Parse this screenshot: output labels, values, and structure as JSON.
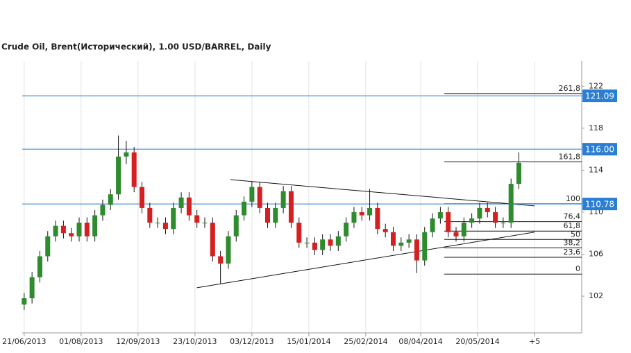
{
  "chart_data": {
    "type": "candlestick",
    "title": "Crude Oil, Brent(Исторический), 1.00 USD/BARREL, Daily",
    "x": [
      0,
      4,
      8,
      12,
      16,
      20,
      24,
      28,
      32,
      36,
      40,
      44,
      48,
      52,
      56,
      60,
      64,
      68,
      72,
      76,
      80,
      84,
      88,
      92,
      96,
      100,
      104,
      108,
      112,
      116,
      120,
      124,
      128,
      132,
      136,
      140,
      144,
      148,
      152,
      156,
      160,
      164,
      168,
      172,
      176,
      180,
      184,
      188,
      192,
      196,
      200,
      204,
      208,
      212,
      216,
      220,
      224,
      228,
      232,
      236,
      240,
      244,
      248,
      252
    ],
    "open": [
      101.2,
      101.8,
      103.8,
      105.8,
      107.7,
      108.7,
      108.0,
      107.7,
      109.0,
      107.7,
      109.7,
      110.7,
      111.7,
      115.3,
      115.7,
      112.4,
      110.4,
      109.0,
      109.0,
      108.4,
      110.4,
      111.4,
      109.7,
      109.0,
      109.0,
      105.8,
      105.1,
      107.7,
      109.7,
      111.0,
      112.4,
      110.4,
      109.0,
      110.4,
      112.0,
      109.0,
      107.1,
      107.1,
      106.4,
      107.4,
      106.8,
      107.7,
      109.0,
      110.0,
      109.7,
      110.4,
      108.4,
      108.1,
      106.8,
      107.1,
      107.4,
      105.4,
      108.1,
      109.4,
      110.0,
      108.1,
      107.7,
      109.0,
      109.4,
      110.4,
      110.0,
      109.0,
      109.0,
      112.7
    ],
    "high": [
      102.3,
      104.3,
      106.3,
      108.2,
      109.2,
      109.2,
      108.5,
      109.5,
      109.5,
      110.2,
      111.2,
      112.2,
      117.3,
      116.8,
      116.2,
      112.9,
      110.9,
      109.5,
      109.5,
      110.9,
      111.9,
      111.9,
      110.2,
      109.5,
      109.5,
      106.3,
      108.2,
      110.2,
      111.5,
      112.9,
      112.9,
      110.9,
      110.9,
      112.5,
      112.5,
      109.5,
      107.6,
      107.6,
      107.9,
      107.9,
      108.2,
      109.5,
      110.5,
      110.5,
      112.2,
      110.9,
      108.9,
      108.6,
      107.6,
      107.9,
      107.9,
      108.6,
      109.9,
      110.5,
      110.5,
      108.6,
      109.5,
      109.9,
      110.9,
      110.9,
      110.5,
      109.5,
      113.2,
      115.7
    ],
    "low": [
      100.7,
      101.3,
      103.3,
      105.3,
      107.2,
      107.5,
      107.2,
      107.2,
      107.2,
      107.2,
      109.2,
      110.2,
      111.2,
      114.6,
      111.9,
      109.9,
      108.5,
      108.5,
      107.9,
      107.9,
      109.9,
      109.2,
      108.5,
      108.5,
      105.3,
      103.2,
      104.6,
      107.2,
      109.2,
      110.5,
      109.9,
      108.5,
      108.5,
      109.9,
      108.5,
      106.6,
      106.6,
      105.9,
      105.9,
      106.3,
      106.3,
      107.2,
      108.5,
      109.2,
      109.2,
      107.9,
      107.6,
      106.3,
      106.3,
      106.6,
      104.2,
      104.9,
      107.6,
      108.9,
      107.6,
      107.2,
      107.2,
      108.5,
      108.9,
      109.5,
      108.5,
      108.5,
      108.5,
      112.2
    ],
    "close": [
      101.8,
      103.8,
      105.8,
      107.7,
      108.7,
      108.0,
      107.7,
      109.0,
      107.7,
      109.7,
      110.7,
      111.7,
      115.3,
      115.7,
      112.4,
      110.4,
      109.0,
      109.0,
      108.4,
      110.4,
      111.4,
      109.7,
      109.0,
      109.0,
      105.8,
      105.1,
      107.7,
      109.7,
      111.0,
      112.4,
      110.4,
      109.0,
      110.4,
      112.0,
      109.0,
      107.1,
      107.1,
      106.4,
      107.4,
      106.8,
      107.7,
      109.0,
      110.0,
      109.7,
      110.4,
      108.4,
      108.1,
      106.8,
      107.1,
      107.4,
      105.4,
      108.1,
      109.4,
      110.0,
      108.1,
      107.7,
      109.0,
      109.4,
      110.4,
      110.0,
      109.0,
      109.0,
      112.7,
      114.7
    ],
    "up_color": "#2e8b2e",
    "down_color": "#d42020",
    "wick_color": "#111111",
    "xlim": [
      -1,
      284
    ],
    "xticks": [
      {
        "value": 0,
        "label": "21/06/2013"
      },
      {
        "value": 29,
        "label": "01/08/2013"
      },
      {
        "value": 58,
        "label": "12/09/2013"
      },
      {
        "value": 87,
        "label": "23/10/2013"
      },
      {
        "value": 116,
        "label": "03/12/2013"
      },
      {
        "value": 145,
        "label": "15/01/2014"
      },
      {
        "value": 174,
        "label": "25/02/2014"
      },
      {
        "value": 202,
        "label": "08/04/2014"
      },
      {
        "value": 231,
        "label": "20/05/2014"
      },
      {
        "value": 260,
        "label": "+5"
      }
    ],
    "ylim": [
      98.5,
      124.4
    ],
    "yticks": [
      102,
      106,
      110,
      114,
      118,
      122
    ],
    "grid": true,
    "price_lines": [
      121.09,
      {
        "value": 116,
        "label": "116.00"
      },
      110.78
    ],
    "price_line_color": "#2a7fd4",
    "fib_start_x": 214,
    "fib_levels": [
      {
        "label": "261,8",
        "value": 121.3
      },
      {
        "label": "161,8",
        "value": 114.8
      },
      {
        "label": "100",
        "value": 110.8
      },
      {
        "label": "76,4",
        "value": 109.1
      },
      {
        "label": "61,8",
        "value": 108.2
      },
      {
        "label": "50",
        "value": 107.4
      },
      {
        "label": "38,2",
        "value": 106.6
      },
      {
        "label": "23,6",
        "value": 105.7
      },
      {
        "label": "0",
        "value": 104.1
      }
    ],
    "trendlines": [
      {
        "x": [
          105,
          260
        ],
        "y": [
          113.1,
          110.6
        ]
      },
      {
        "x": [
          88,
          260
        ],
        "y": [
          102.8,
          108.1
        ]
      }
    ]
  }
}
